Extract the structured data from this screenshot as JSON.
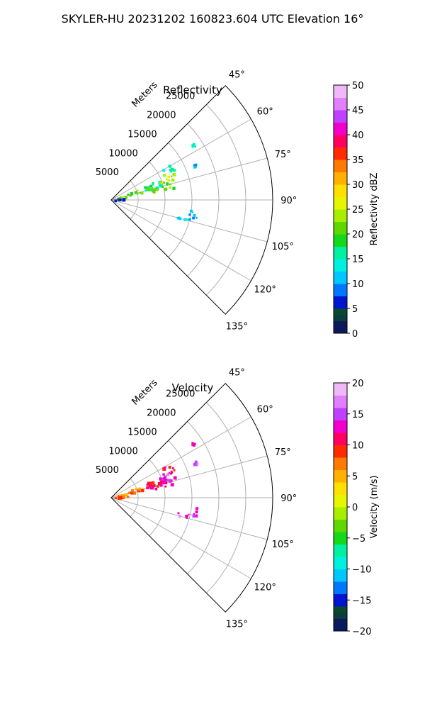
{
  "figure": {
    "title": "SKYLER-HU  20231202  160823.604 UTC Elevation 16°"
  },
  "chart_data": [
    {
      "type": "scatter",
      "subtype": "polar-sector radar PPI",
      "title": "Reflectivity",
      "radial_axis_label": "Meters",
      "radial_ticks": [
        5000,
        10000,
        15000,
        20000,
        25000
      ],
      "radial_tick_labels": [
        "5000",
        "10000",
        "15000",
        "20000",
        "25000"
      ],
      "rlim": [
        0,
        30000
      ],
      "angle_ticks": [
        45,
        60,
        75,
        90,
        105,
        120,
        135
      ],
      "angle_tick_labels": [
        "45°",
        "60°",
        "75°",
        "90°",
        "105°",
        "120°",
        "135°"
      ],
      "theta_range_deg": [
        45,
        135
      ],
      "grid": true,
      "colorbar": {
        "label": "Reflectivity dBZ",
        "range": [
          0,
          50
        ],
        "ticks": [
          0,
          5,
          10,
          15,
          20,
          25,
          30,
          35,
          40,
          45,
          50
        ],
        "tick_labels": [
          "0",
          "5",
          "10",
          "15",
          "20",
          "25",
          "30",
          "35",
          "40",
          "45",
          "50"
        ]
      },
      "echo_regions": [
        {
          "az": [
            67,
            75
          ],
          "range_m": [
            1000,
            6000
          ],
          "value": 21
        },
        {
          "az": [
            78,
            84
          ],
          "range_m": [
            400,
            3000
          ],
          "value": 5
        },
        {
          "az": [
            66,
            74
          ],
          "range_m": [
            6500,
            10500
          ],
          "value": 16
        },
        {
          "az": [
            70,
            78
          ],
          "range_m": [
            7000,
            12000
          ],
          "value": 22
        },
        {
          "az": [
            63,
            72
          ],
          "range_m": [
            9500,
            13000
          ],
          "value": 24
        },
        {
          "az": [
            58,
            66
          ],
          "range_m": [
            11000,
            13000
          ],
          "value": 14
        },
        {
          "az": [
            100,
            105
          ],
          "range_m": [
            12500,
            15000
          ],
          "value": 12
        },
        {
          "az": [
            96,
            102
          ],
          "range_m": [
            14500,
            16000
          ],
          "value": 11
        },
        {
          "az": [
            55,
            57
          ],
          "range_m": [
            18000,
            18500
          ],
          "value": 15
        },
        {
          "az": [
            66,
            68
          ],
          "range_m": [
            16500,
            17000
          ],
          "value": 12
        }
      ]
    },
    {
      "type": "scatter",
      "subtype": "polar-sector radar PPI",
      "title": "Velocity",
      "radial_axis_label": "Meters",
      "radial_ticks": [
        5000,
        10000,
        15000,
        20000,
        25000
      ],
      "radial_tick_labels": [
        "5000",
        "10000",
        "15000",
        "20000",
        "25000"
      ],
      "rlim": [
        0,
        30000
      ],
      "angle_ticks": [
        45,
        60,
        75,
        90,
        105,
        120,
        135
      ],
      "angle_tick_labels": [
        "45°",
        "60°",
        "75°",
        "90°",
        "105°",
        "120°",
        "135°"
      ],
      "theta_range_deg": [
        45,
        135
      ],
      "grid": true,
      "colorbar": {
        "label": "Velocity (m/s)",
        "range": [
          -20,
          20
        ],
        "ticks": [
          -20,
          -15,
          -10,
          -5,
          0,
          5,
          10,
          15,
          20
        ],
        "tick_labels": [
          "−20",
          "−15",
          "−10",
          "−5",
          "0",
          "5",
          "10",
          "15",
          "20"
        ]
      },
      "echo_regions": [
        {
          "az": [
            67,
            75
          ],
          "range_m": [
            1000,
            6000
          ],
          "value": 7
        },
        {
          "az": [
            78,
            84
          ],
          "range_m": [
            400,
            3000
          ],
          "value": 8
        },
        {
          "az": [
            66,
            74
          ],
          "range_m": [
            6500,
            10500
          ],
          "value": 10
        },
        {
          "az": [
            70,
            78
          ],
          "range_m": [
            7000,
            12000
          ],
          "value": 12
        },
        {
          "az": [
            63,
            72
          ],
          "range_m": [
            9500,
            13000
          ],
          "value": 14
        },
        {
          "az": [
            58,
            66
          ],
          "range_m": [
            11000,
            13000
          ],
          "value": 11
        },
        {
          "az": [
            100,
            105
          ],
          "range_m": [
            12500,
            15000
          ],
          "value": 15
        },
        {
          "az": [
            96,
            102
          ],
          "range_m": [
            14500,
            16000
          ],
          "value": 15
        },
        {
          "az": [
            55,
            57
          ],
          "range_m": [
            18000,
            18500
          ],
          "value": 12
        },
        {
          "az": [
            66,
            68
          ],
          "range_m": [
            16500,
            17000
          ],
          "value": 15
        }
      ]
    }
  ]
}
